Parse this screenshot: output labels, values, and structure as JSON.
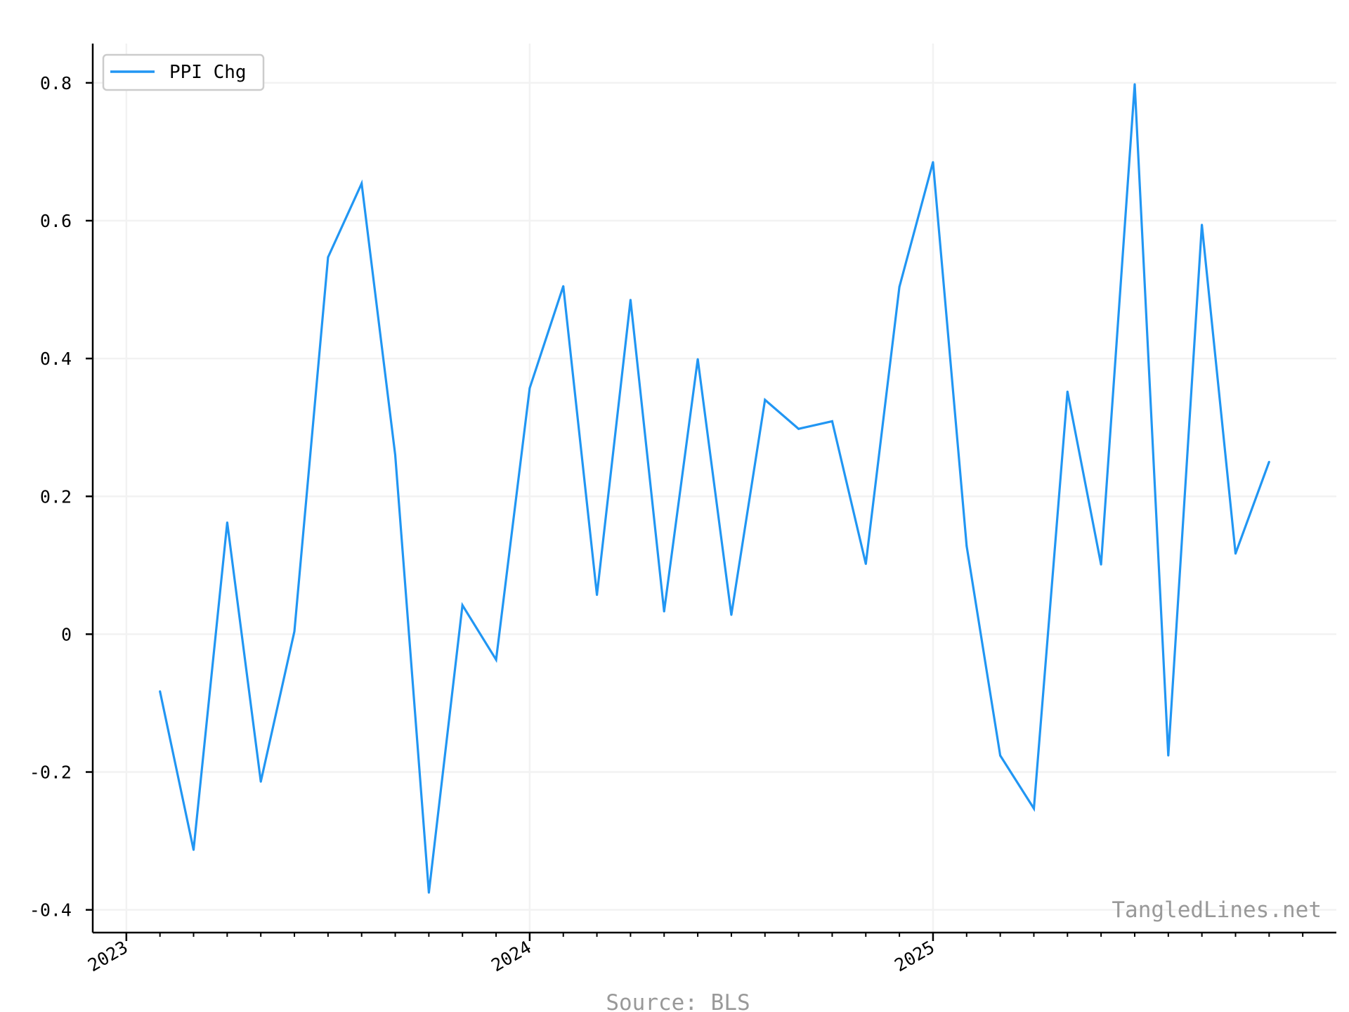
{
  "chart_data": {
    "type": "line",
    "x": [
      "2023-02",
      "2023-03",
      "2023-04",
      "2023-05",
      "2023-06",
      "2023-07",
      "2023-08",
      "2023-09",
      "2023-10",
      "2023-11",
      "2023-12",
      "2024-01",
      "2024-02",
      "2024-03",
      "2024-04",
      "2024-05",
      "2024-06",
      "2024-07",
      "2024-08",
      "2024-09",
      "2024-10",
      "2024-11",
      "2024-12",
      "2025-01",
      "2025-02",
      "2025-03",
      "2025-04",
      "2025-05",
      "2025-06",
      "2025-07",
      "2025-08",
      "2025-09",
      "2025-10",
      "2025-11"
    ],
    "series": [
      {
        "name": "PPI Chg",
        "color": "#2196F3",
        "values": [
          -0.083,
          -0.313,
          0.162,
          -0.214,
          0.004,
          0.547,
          0.654,
          0.26,
          -0.375,
          0.042,
          -0.037,
          0.357,
          0.505,
          0.057,
          0.485,
          0.033,
          0.399,
          0.028,
          0.34,
          0.298,
          0.309,
          0.102,
          0.504,
          0.685,
          0.128,
          -0.176,
          -0.253,
          0.352,
          0.101,
          0.798,
          -0.176,
          0.594,
          0.117,
          0.25
        ]
      }
    ],
    "x_ticks": [
      {
        "label": "2023",
        "date": "2023-01"
      },
      {
        "label": "2024",
        "date": "2024-01"
      },
      {
        "label": "2025",
        "date": "2025-01"
      }
    ],
    "y_ticks": [
      {
        "label": "-0.4",
        "value": -0.4
      },
      {
        "label": "-0.2",
        "value": -0.2
      },
      {
        "label": "0",
        "value": 0
      },
      {
        "label": "0.2",
        "value": 0.2
      },
      {
        "label": "0.4",
        "value": 0.4
      },
      {
        "label": "0.6",
        "value": 0.6
      },
      {
        "label": "0.8",
        "value": 0.8
      }
    ],
    "xlim": [
      "2022-12",
      "2026-01"
    ],
    "ylim": [
      -0.433,
      0.857
    ],
    "grid": true,
    "legend_position": "top-left",
    "title": "",
    "xlabel": "",
    "ylabel": ""
  },
  "watermark": "TangledLines.net",
  "source": "Source: BLS",
  "colors": {
    "line": "#2196F3",
    "grid": "#f2f2f2",
    "axis": "#000000",
    "muted_text": "#999999"
  }
}
